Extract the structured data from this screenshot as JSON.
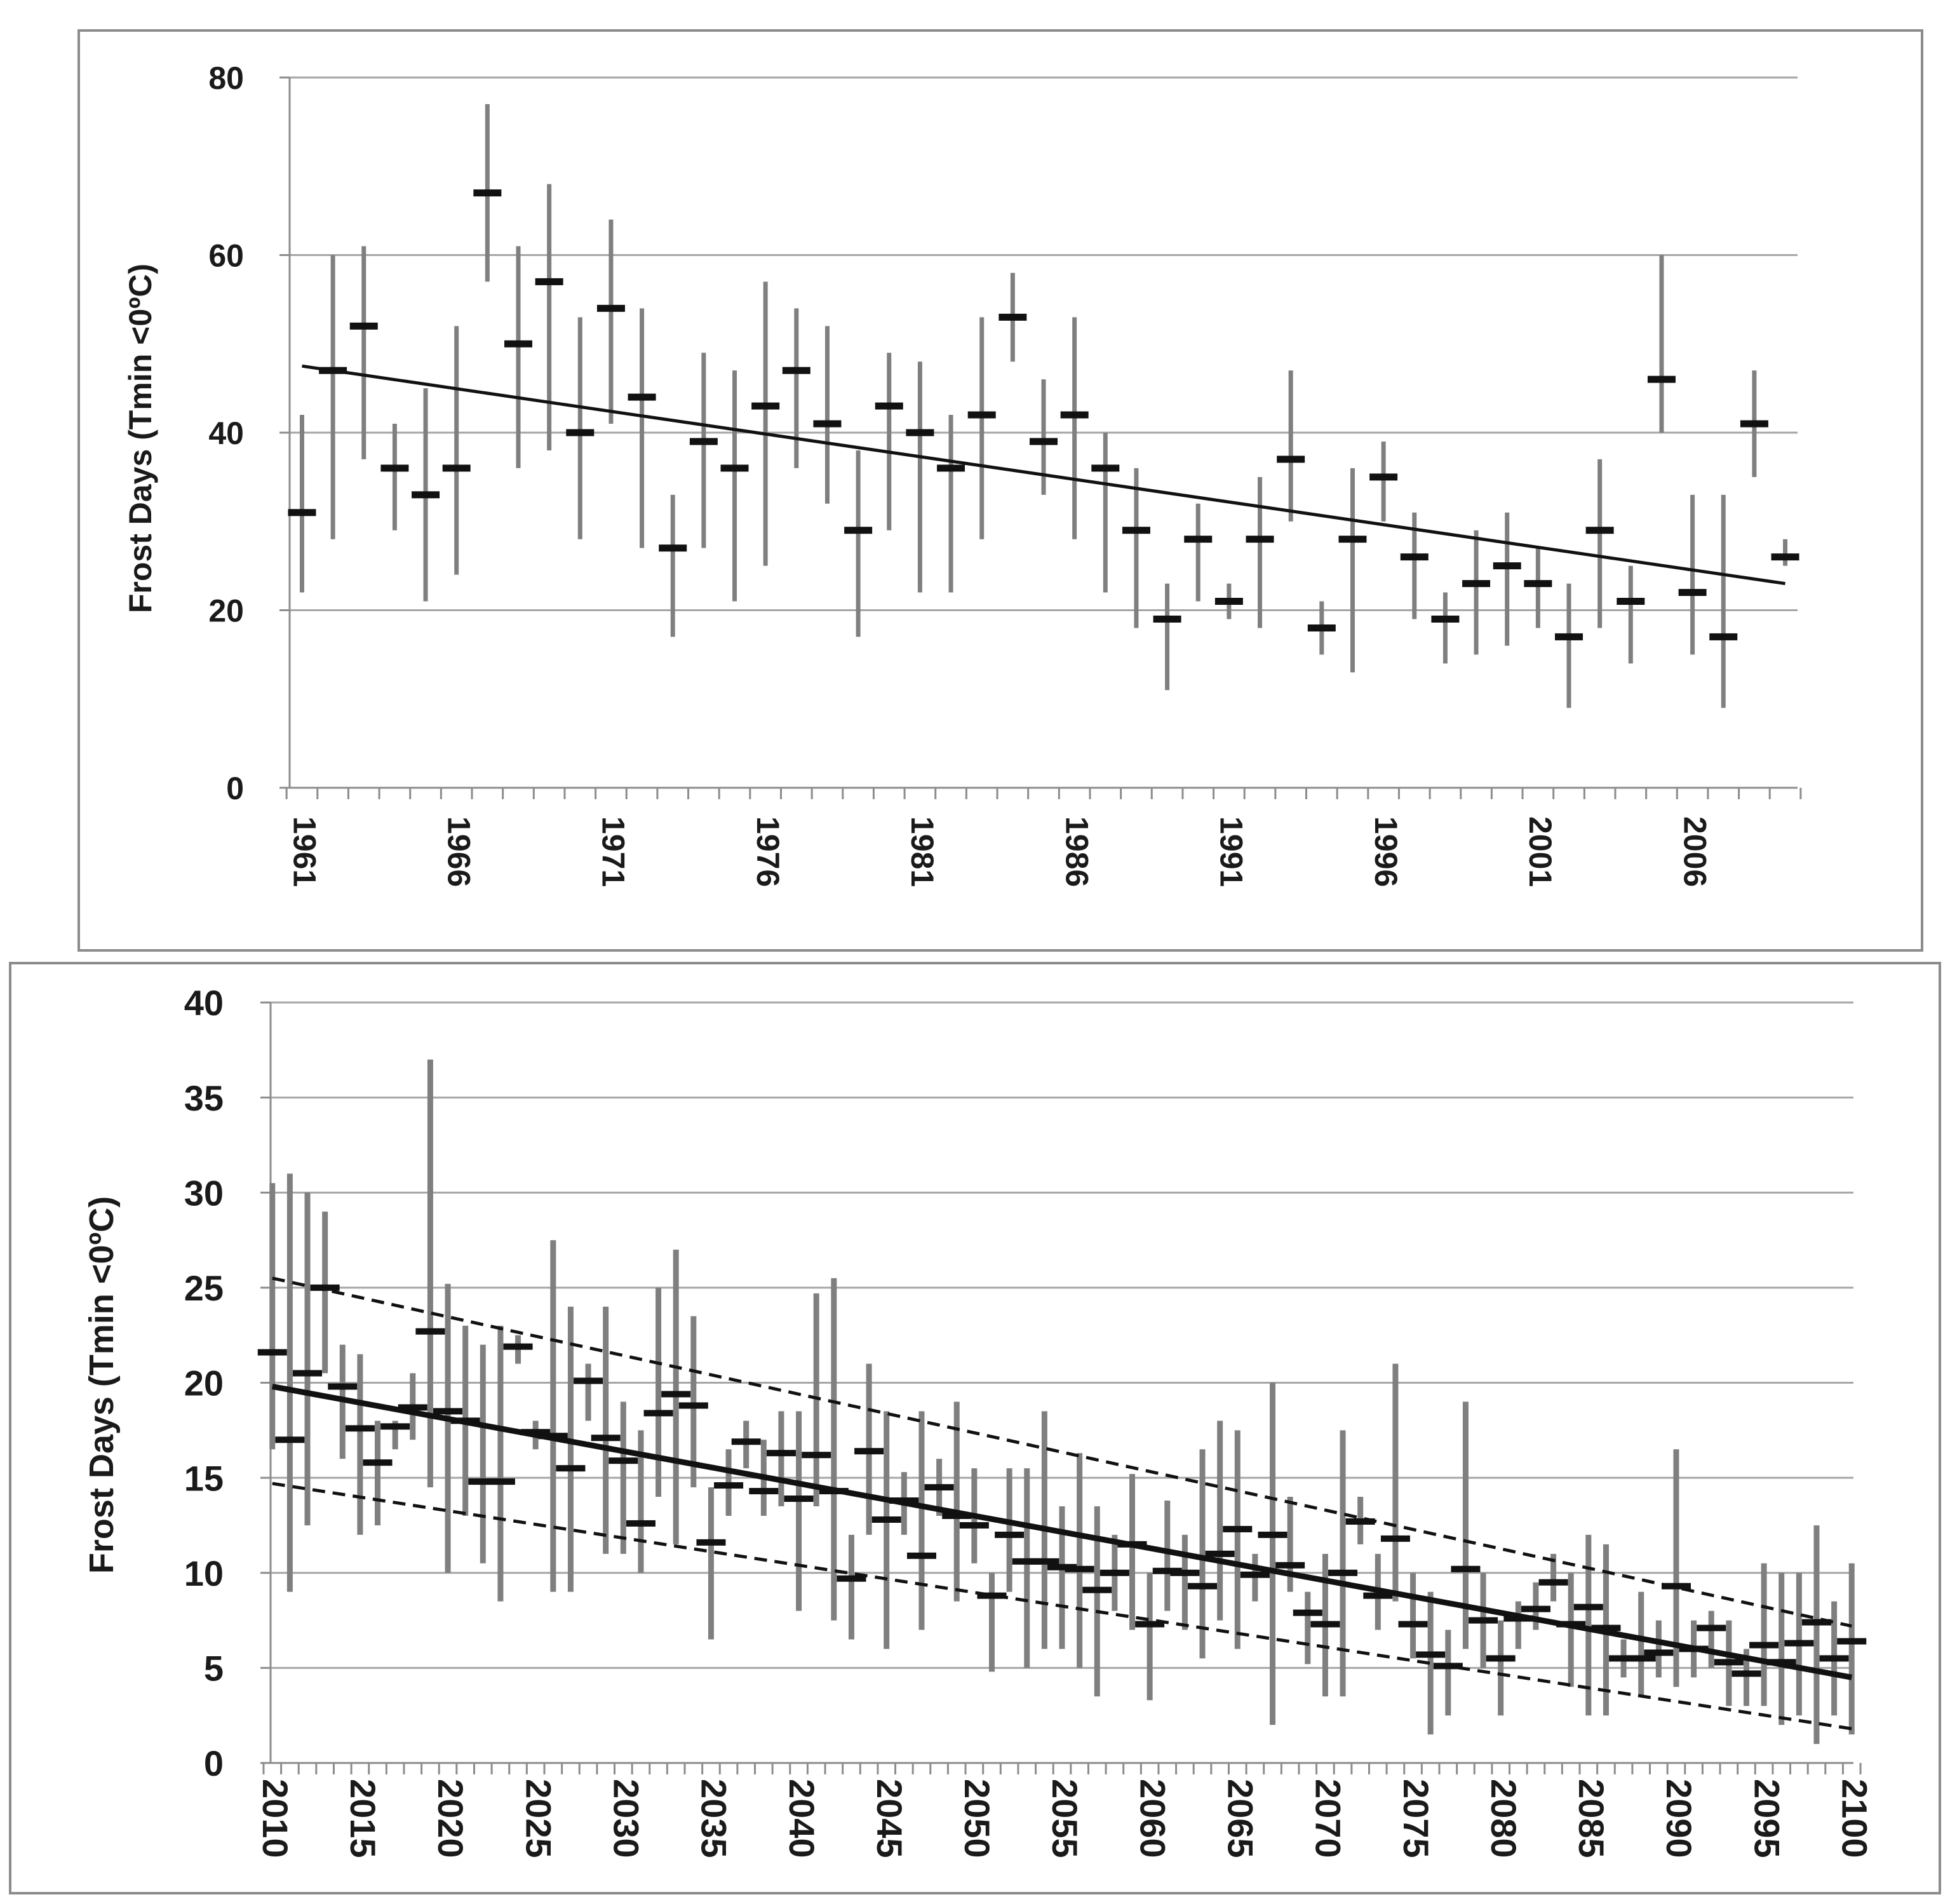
{
  "chart_data": [
    {
      "type": "errorbar",
      "title": "",
      "ylabel": "Frost Days (Tmin <0ºC)",
      "xlabel": "",
      "ylim": [
        0,
        80
      ],
      "yticks": [
        0,
        20,
        40,
        60,
        80
      ],
      "xlabels": [
        "1961",
        "1966",
        "1971",
        "1976",
        "1981",
        "1986",
        "1991",
        "1996",
        "2001",
        "2006"
      ],
      "grid": true,
      "x": [
        1961,
        1962,
        1963,
        1964,
        1965,
        1966,
        1967,
        1968,
        1969,
        1970,
        1971,
        1972,
        1973,
        1974,
        1975,
        1976,
        1977,
        1978,
        1979,
        1980,
        1981,
        1982,
        1983,
        1984,
        1985,
        1986,
        1987,
        1988,
        1989,
        1990,
        1991,
        1992,
        1993,
        1994,
        1995,
        1996,
        1997,
        1998,
        1999,
        2000,
        2001,
        2002,
        2003,
        2004,
        2005,
        2006,
        2007,
        2008,
        2009
      ],
      "values": [
        31,
        47,
        52,
        36,
        33,
        36,
        67,
        50,
        57,
        40,
        54,
        44,
        27,
        39,
        36,
        43,
        47,
        41,
        29,
        43,
        40,
        36,
        42,
        53,
        39,
        42,
        36,
        29,
        19,
        28,
        21,
        28,
        37,
        18,
        28,
        35,
        26,
        19,
        23,
        25,
        23,
        17,
        29,
        21,
        46,
        22,
        17,
        41,
        26
      ],
      "upper": [
        42,
        60,
        61,
        41,
        45,
        52,
        77,
        61,
        68,
        53,
        64,
        54,
        33,
        49,
        47,
        57,
        54,
        52,
        38,
        49,
        48,
        42,
        53,
        58,
        46,
        53,
        40,
        36,
        23,
        32,
        23,
        35,
        47,
        21,
        36,
        39,
        31,
        22,
        29,
        31,
        27,
        23,
        37,
        25,
        60,
        33,
        33,
        47,
        28
      ],
      "lower": [
        22,
        28,
        37,
        29,
        21,
        24,
        57,
        36,
        38,
        28,
        41,
        27,
        17,
        27,
        21,
        25,
        36,
        32,
        17,
        29,
        22,
        22,
        28,
        48,
        33,
        28,
        22,
        18,
        11,
        21,
        19,
        18,
        30,
        15,
        13,
        30,
        19,
        14,
        15,
        16,
        18,
        9,
        18,
        14,
        40,
        15,
        9,
        35,
        25
      ],
      "trend": {
        "x": [
          1961,
          2009
        ],
        "y": [
          47.5,
          23.0
        ]
      }
    },
    {
      "type": "errorbar",
      "title": "",
      "ylabel": "Frost Days (Tmin <0ºC)",
      "xlabel": "",
      "ylim": [
        0,
        40
      ],
      "yticks": [
        0,
        5,
        10,
        15,
        20,
        25,
        30,
        35,
        40
      ],
      "xlabels": [
        "2010",
        "2015",
        "2020",
        "2025",
        "2030",
        "2035",
        "2040",
        "2045",
        "2050",
        "2055",
        "2060",
        "2065",
        "2070",
        "2075",
        "2080",
        "2085",
        "2090",
        "2095",
        "2100"
      ],
      "grid": true,
      "x": [
        2010,
        2011,
        2012,
        2013,
        2014,
        2015,
        2016,
        2017,
        2018,
        2019,
        2020,
        2021,
        2022,
        2023,
        2024,
        2025,
        2026,
        2027,
        2028,
        2029,
        2030,
        2031,
        2032,
        2033,
        2034,
        2035,
        2036,
        2037,
        2038,
        2039,
        2040,
        2041,
        2042,
        2043,
        2044,
        2045,
        2046,
        2047,
        2048,
        2049,
        2050,
        2051,
        2052,
        2053,
        2054,
        2055,
        2056,
        2057,
        2058,
        2059,
        2060,
        2061,
        2062,
        2063,
        2064,
        2065,
        2066,
        2067,
        2068,
        2069,
        2070,
        2071,
        2072,
        2073,
        2074,
        2075,
        2076,
        2077,
        2078,
        2079,
        2080,
        2081,
        2082,
        2083,
        2084,
        2085,
        2086,
        2087,
        2088,
        2089,
        2090,
        2091,
        2092,
        2093,
        2094,
        2095,
        2096,
        2097,
        2098,
        2099,
        2100
      ],
      "values": [
        21.6,
        17.0,
        20.5,
        25.0,
        19.8,
        17.6,
        15.8,
        17.7,
        18.7,
        22.7,
        18.5,
        18.0,
        14.8,
        14.8,
        21.9,
        17.4,
        17.2,
        15.5,
        20.1,
        17.1,
        15.9,
        12.6,
        18.4,
        19.4,
        18.8,
        11.6,
        14.6,
        16.9,
        14.3,
        16.3,
        13.9,
        16.2,
        14.3,
        9.7,
        16.4,
        12.8,
        13.8,
        10.9,
        14.5,
        13.0,
        12.5,
        8.8,
        12.0,
        10.6,
        10.6,
        10.3,
        10.2,
        9.1,
        10.0,
        11.5,
        7.3,
        10.1,
        10.0,
        9.3,
        11.0,
        12.3,
        9.9,
        12.0,
        10.4,
        7.9,
        7.3,
        10.0,
        12.7,
        8.8,
        11.8,
        7.3,
        5.7,
        5.1,
        10.2,
        7.5,
        5.5,
        7.6,
        8.1,
        9.5,
        7.3,
        8.2,
        7.1,
        5.5,
        5.5,
        5.8,
        9.3,
        6.0,
        7.1,
        5.3,
        4.7,
        6.2,
        5.3,
        6.3,
        7.4,
        5.5,
        6.4
      ],
      "upper": [
        30.5,
        31.0,
        30.0,
        29.0,
        22.0,
        21.5,
        18.0,
        18.0,
        20.5,
        37.0,
        25.2,
        23.0,
        22.0,
        23.0,
        22.5,
        18.0,
        27.5,
        24.0,
        21.0,
        24.0,
        19.0,
        17.5,
        25.0,
        27.0,
        23.5,
        14.5,
        16.5,
        18.0,
        17.0,
        18.5,
        18.5,
        24.7,
        25.5,
        12.0,
        21.0,
        18.5,
        15.3,
        18.5,
        16.0,
        19.0,
        15.5,
        10.0,
        15.5,
        15.5,
        18.5,
        13.5,
        16.3,
        13.5,
        12.0,
        15.2,
        10.0,
        13.8,
        12.0,
        16.5,
        18.0,
        17.5,
        11.0,
        20.0,
        14.0,
        9.0,
        11.0,
        17.5,
        14.0,
        11.0,
        21.0,
        10.0,
        9.0,
        7.0,
        19.0,
        10.0,
        7.5,
        8.5,
        9.5,
        11.0,
        10.0,
        12.0,
        11.5,
        6.5,
        9.0,
        7.5,
        16.5,
        7.5,
        8.0,
        7.5,
        6.0,
        10.5,
        10.0,
        10.0,
        12.5,
        8.5,
        10.5
      ],
      "lower": [
        16.5,
        9.0,
        12.5,
        20.5,
        16.0,
        12.0,
        12.5,
        16.5,
        17.0,
        14.5,
        10.0,
        13.0,
        10.5,
        8.5,
        21.0,
        16.5,
        9.0,
        9.0,
        18.0,
        11.0,
        11.0,
        10.0,
        14.0,
        11.5,
        14.5,
        6.5,
        13.0,
        15.5,
        13.0,
        13.5,
        8.0,
        13.5,
        7.5,
        6.5,
        12.0,
        6.0,
        12.0,
        7.0,
        13.0,
        8.5,
        10.5,
        4.8,
        9.0,
        5.0,
        6.0,
        6.0,
        5.0,
        3.5,
        8.0,
        7.0,
        3.3,
        8.0,
        7.0,
        5.5,
        7.5,
        6.0,
        8.5,
        2.0,
        9.0,
        5.2,
        3.5,
        3.5,
        11.5,
        7.0,
        8.5,
        5.5,
        1.5,
        2.5,
        6.0,
        5.0,
        2.5,
        6.0,
        7.0,
        8.5,
        4.0,
        2.5,
        2.5,
        4.5,
        3.5,
        4.5,
        4.0,
        4.5,
        5.0,
        3.0,
        3.0,
        3.0,
        2.0,
        2.5,
        1.0,
        2.5,
        1.5
      ],
      "trend": {
        "x": [
          2010,
          2100
        ],
        "y": [
          19.8,
          4.5
        ]
      },
      "bounds": [
        {
          "name": "upper",
          "x": [
            2010,
            2100
          ],
          "y": [
            25.5,
            7.2
          ]
        },
        {
          "name": "lower",
          "x": [
            2010,
            2100
          ],
          "y": [
            14.7,
            1.8
          ]
        }
      ]
    }
  ]
}
